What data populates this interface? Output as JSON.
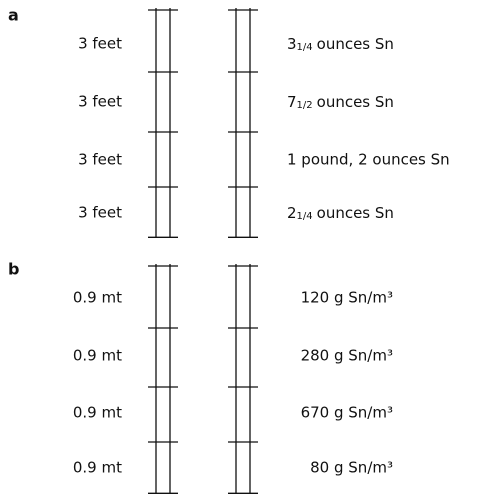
{
  "panels": [
    {
      "label": "a",
      "rows": [
        {
          "depth": "3 feet",
          "amount": {
            "whole": "3",
            "fraction": "1/4",
            "rest": "ounces Sn"
          }
        },
        {
          "depth": "3 feet",
          "amount": {
            "whole": "7",
            "fraction": "1/2",
            "rest": "ounces Sn"
          }
        },
        {
          "depth": "3 feet",
          "amount": {
            "text": "1 pound, 2 ounces Sn"
          }
        },
        {
          "depth": "3 feet",
          "amount": {
            "whole": "2",
            "fraction": "1/4",
            "rest": "ounces Sn"
          }
        }
      ]
    },
    {
      "label": "b",
      "rows": [
        {
          "depth": "0.9 mt",
          "amount": {
            "text": "120 g Sn/m³"
          }
        },
        {
          "depth": "0.9 mt",
          "amount": {
            "text": "280 g Sn/m³"
          }
        },
        {
          "depth": "0.9 mt",
          "amount": {
            "text": "670 g Sn/m³"
          }
        },
        {
          "depth": "0.9 mt",
          "amount": {
            "text": "80 g Sn/m³"
          }
        }
      ]
    }
  ]
}
